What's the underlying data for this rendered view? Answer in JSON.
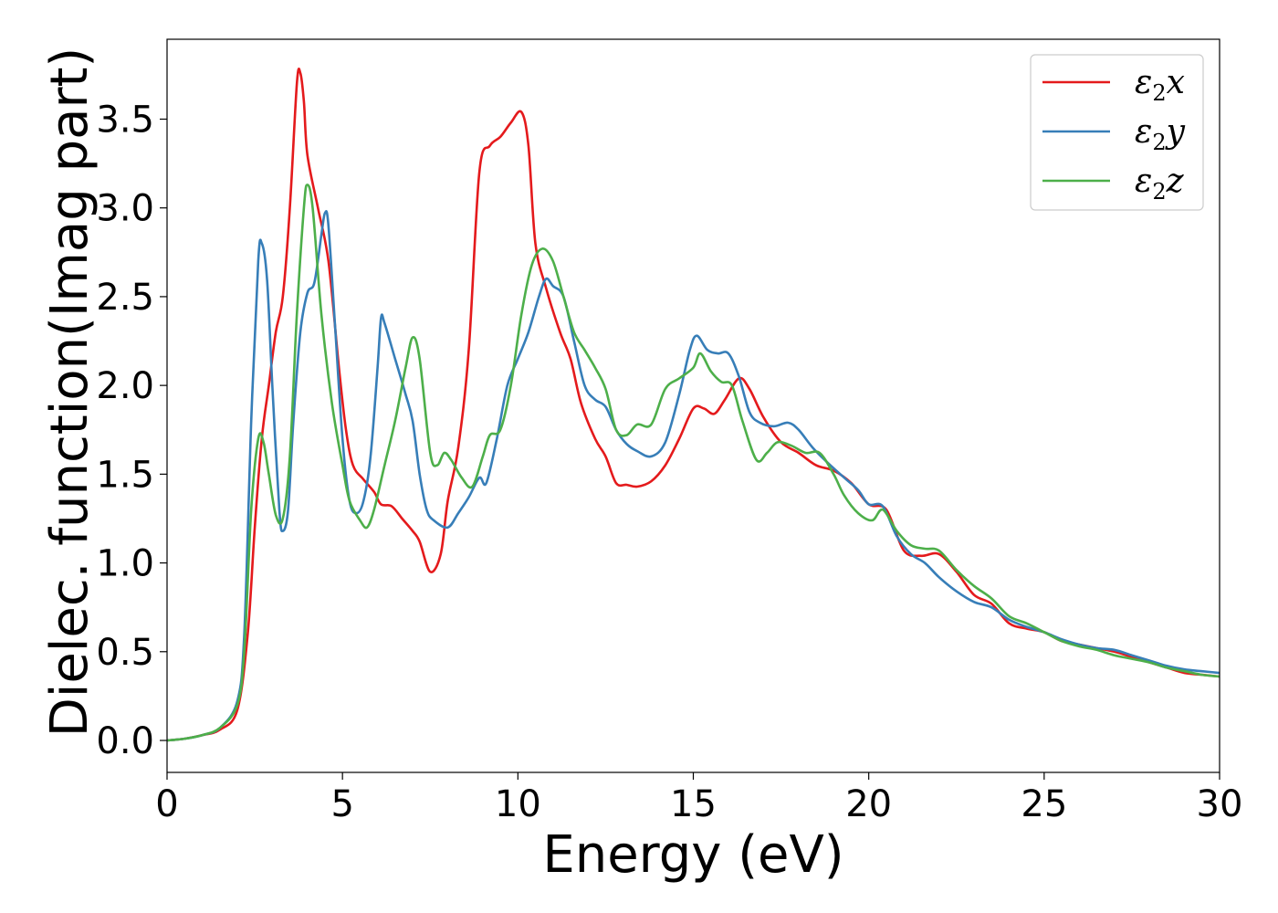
{
  "chart_data": {
    "type": "line",
    "title": "",
    "xlabel": "Energy (eV)",
    "ylabel": "Dielec. function(Imag part)",
    "xlim": [
      0,
      30
    ],
    "ylim": [
      -0.18,
      3.95
    ],
    "xticks": [
      0,
      5,
      10,
      15,
      20,
      25,
      30
    ],
    "yticks": [
      0.0,
      0.5,
      1.0,
      1.5,
      2.0,
      2.5,
      3.0,
      3.5
    ],
    "xtick_labels": [
      "0",
      "5",
      "10",
      "15",
      "20",
      "25",
      "30"
    ],
    "ytick_labels": [
      "0.0",
      "0.5",
      "1.0",
      "1.5",
      "2.0",
      "2.5",
      "3.0",
      "3.5"
    ],
    "grid": false,
    "legend_position": "top-right",
    "series": [
      {
        "name": "x",
        "subscript": "2",
        "color": "#e41a1c",
        "points": [
          [
            0,
            0
          ],
          [
            0.5,
            0.01
          ],
          [
            1,
            0.03
          ],
          [
            1.5,
            0.06
          ],
          [
            2,
            0.17
          ],
          [
            2.3,
            0.6
          ],
          [
            2.5,
            1.2
          ],
          [
            2.7,
            1.7
          ],
          [
            2.9,
            2.0
          ],
          [
            3.1,
            2.3
          ],
          [
            3.3,
            2.5
          ],
          [
            3.5,
            3.0
          ],
          [
            3.7,
            3.7
          ],
          [
            3.8,
            3.76
          ],
          [
            3.9,
            3.6
          ],
          [
            4.0,
            3.3
          ],
          [
            4.3,
            3.0
          ],
          [
            4.6,
            2.7
          ],
          [
            4.9,
            2.1
          ],
          [
            5.1,
            1.75
          ],
          [
            5.3,
            1.55
          ],
          [
            5.6,
            1.47
          ],
          [
            5.9,
            1.4
          ],
          [
            6.1,
            1.33
          ],
          [
            6.4,
            1.32
          ],
          [
            6.7,
            1.25
          ],
          [
            7.0,
            1.18
          ],
          [
            7.2,
            1.12
          ],
          [
            7.5,
            0.95
          ],
          [
            7.8,
            1.05
          ],
          [
            8.0,
            1.35
          ],
          [
            8.3,
            1.65
          ],
          [
            8.6,
            2.2
          ],
          [
            8.9,
            3.2
          ],
          [
            9.2,
            3.35
          ],
          [
            9.5,
            3.4
          ],
          [
            9.8,
            3.48
          ],
          [
            10.1,
            3.54
          ],
          [
            10.3,
            3.35
          ],
          [
            10.5,
            2.8
          ],
          [
            10.8,
            2.55
          ],
          [
            11.2,
            2.3
          ],
          [
            11.5,
            2.15
          ],
          [
            11.8,
            1.9
          ],
          [
            12.2,
            1.7
          ],
          [
            12.5,
            1.6
          ],
          [
            12.8,
            1.45
          ],
          [
            13.1,
            1.44
          ],
          [
            13.4,
            1.43
          ],
          [
            13.8,
            1.46
          ],
          [
            14.2,
            1.55
          ],
          [
            14.6,
            1.7
          ],
          [
            15.0,
            1.87
          ],
          [
            15.3,
            1.87
          ],
          [
            15.6,
            1.84
          ],
          [
            15.9,
            1.92
          ],
          [
            16.3,
            2.04
          ],
          [
            16.6,
            1.98
          ],
          [
            17.0,
            1.82
          ],
          [
            17.5,
            1.68
          ],
          [
            18.0,
            1.62
          ],
          [
            18.5,
            1.55
          ],
          [
            19.0,
            1.52
          ],
          [
            19.5,
            1.45
          ],
          [
            20.0,
            1.33
          ],
          [
            20.5,
            1.3
          ],
          [
            21.0,
            1.07
          ],
          [
            21.5,
            1.04
          ],
          [
            22.0,
            1.05
          ],
          [
            22.5,
            0.95
          ],
          [
            23.0,
            0.82
          ],
          [
            23.5,
            0.77
          ],
          [
            24.0,
            0.66
          ],
          [
            24.5,
            0.63
          ],
          [
            25.0,
            0.61
          ],
          [
            25.5,
            0.56
          ],
          [
            26.0,
            0.54
          ],
          [
            26.5,
            0.52
          ],
          [
            27.0,
            0.5
          ],
          [
            27.5,
            0.47
          ],
          [
            28.0,
            0.44
          ],
          [
            28.5,
            0.41
          ],
          [
            29.0,
            0.38
          ],
          [
            29.5,
            0.37
          ],
          [
            30.0,
            0.36
          ]
        ]
      },
      {
        "name": "y",
        "subscript": "2",
        "color": "#377eb8",
        "points": [
          [
            0,
            0
          ],
          [
            0.5,
            0.01
          ],
          [
            1,
            0.03
          ],
          [
            1.5,
            0.07
          ],
          [
            2,
            0.22
          ],
          [
            2.2,
            0.6
          ],
          [
            2.4,
            1.8
          ],
          [
            2.6,
            2.7
          ],
          [
            2.7,
            2.8
          ],
          [
            2.85,
            2.6
          ],
          [
            3.0,
            2.0
          ],
          [
            3.2,
            1.3
          ],
          [
            3.3,
            1.18
          ],
          [
            3.45,
            1.3
          ],
          [
            3.6,
            1.8
          ],
          [
            3.8,
            2.3
          ],
          [
            4.0,
            2.52
          ],
          [
            4.2,
            2.58
          ],
          [
            4.4,
            2.85
          ],
          [
            4.5,
            2.97
          ],
          [
            4.6,
            2.9
          ],
          [
            4.8,
            2.3
          ],
          [
            5.0,
            1.7
          ],
          [
            5.2,
            1.35
          ],
          [
            5.4,
            1.28
          ],
          [
            5.6,
            1.35
          ],
          [
            5.8,
            1.6
          ],
          [
            6.0,
            2.1
          ],
          [
            6.1,
            2.38
          ],
          [
            6.2,
            2.35
          ],
          [
            6.5,
            2.15
          ],
          [
            6.8,
            1.95
          ],
          [
            7.0,
            1.8
          ],
          [
            7.2,
            1.5
          ],
          [
            7.4,
            1.3
          ],
          [
            7.6,
            1.24
          ],
          [
            8.0,
            1.2
          ],
          [
            8.3,
            1.28
          ],
          [
            8.6,
            1.37
          ],
          [
            8.9,
            1.48
          ],
          [
            9.1,
            1.45
          ],
          [
            9.4,
            1.7
          ],
          [
            9.7,
            2.0
          ],
          [
            10.0,
            2.15
          ],
          [
            10.3,
            2.3
          ],
          [
            10.6,
            2.5
          ],
          [
            10.8,
            2.6
          ],
          [
            11.0,
            2.56
          ],
          [
            11.3,
            2.5
          ],
          [
            11.6,
            2.25
          ],
          [
            11.9,
            2.0
          ],
          [
            12.2,
            1.92
          ],
          [
            12.5,
            1.88
          ],
          [
            12.8,
            1.75
          ],
          [
            13.1,
            1.67
          ],
          [
            13.4,
            1.63
          ],
          [
            13.8,
            1.6
          ],
          [
            14.2,
            1.68
          ],
          [
            14.6,
            1.95
          ],
          [
            14.9,
            2.2
          ],
          [
            15.1,
            2.28
          ],
          [
            15.4,
            2.2
          ],
          [
            15.7,
            2.18
          ],
          [
            16.0,
            2.18
          ],
          [
            16.3,
            2.05
          ],
          [
            16.6,
            1.85
          ],
          [
            16.9,
            1.79
          ],
          [
            17.3,
            1.77
          ],
          [
            17.7,
            1.79
          ],
          [
            18.0,
            1.75
          ],
          [
            18.4,
            1.65
          ],
          [
            18.8,
            1.57
          ],
          [
            19.3,
            1.48
          ],
          [
            19.7,
            1.41
          ],
          [
            20.0,
            1.33
          ],
          [
            20.4,
            1.32
          ],
          [
            20.8,
            1.15
          ],
          [
            21.2,
            1.05
          ],
          [
            21.6,
            1.0
          ],
          [
            22.0,
            0.92
          ],
          [
            22.5,
            0.84
          ],
          [
            23.0,
            0.78
          ],
          [
            23.5,
            0.75
          ],
          [
            24.0,
            0.68
          ],
          [
            24.5,
            0.64
          ],
          [
            25.0,
            0.61
          ],
          [
            25.5,
            0.57
          ],
          [
            26.0,
            0.54
          ],
          [
            26.5,
            0.52
          ],
          [
            27.0,
            0.51
          ],
          [
            27.5,
            0.48
          ],
          [
            28.0,
            0.45
          ],
          [
            28.5,
            0.42
          ],
          [
            29.0,
            0.4
          ],
          [
            29.5,
            0.39
          ],
          [
            30.0,
            0.38
          ]
        ]
      },
      {
        "name": "z",
        "subscript": "2",
        "color": "#4daf4a",
        "points": [
          [
            0,
            0
          ],
          [
            0.5,
            0.01
          ],
          [
            1,
            0.03
          ],
          [
            1.5,
            0.07
          ],
          [
            2,
            0.2
          ],
          [
            2.2,
            0.5
          ],
          [
            2.4,
            1.3
          ],
          [
            2.6,
            1.7
          ],
          [
            2.75,
            1.68
          ],
          [
            2.9,
            1.5
          ],
          [
            3.1,
            1.27
          ],
          [
            3.3,
            1.25
          ],
          [
            3.5,
            1.6
          ],
          [
            3.7,
            2.4
          ],
          [
            3.9,
            3.0
          ],
          [
            4.0,
            3.13
          ],
          [
            4.15,
            3.0
          ],
          [
            4.4,
            2.4
          ],
          [
            4.7,
            1.9
          ],
          [
            5.0,
            1.55
          ],
          [
            5.2,
            1.35
          ],
          [
            5.5,
            1.24
          ],
          [
            5.7,
            1.2
          ],
          [
            5.9,
            1.3
          ],
          [
            6.2,
            1.55
          ],
          [
            6.5,
            1.8
          ],
          [
            6.8,
            2.1
          ],
          [
            7.0,
            2.27
          ],
          [
            7.2,
            2.15
          ],
          [
            7.5,
            1.62
          ],
          [
            7.7,
            1.55
          ],
          [
            7.9,
            1.62
          ],
          [
            8.1,
            1.58
          ],
          [
            8.4,
            1.48
          ],
          [
            8.7,
            1.43
          ],
          [
            9.0,
            1.6
          ],
          [
            9.2,
            1.72
          ],
          [
            9.5,
            1.75
          ],
          [
            9.8,
            2.0
          ],
          [
            10.1,
            2.4
          ],
          [
            10.4,
            2.68
          ],
          [
            10.7,
            2.77
          ],
          [
            11.0,
            2.7
          ],
          [
            11.3,
            2.5
          ],
          [
            11.6,
            2.3
          ],
          [
            11.9,
            2.2
          ],
          [
            12.2,
            2.1
          ],
          [
            12.5,
            1.98
          ],
          [
            12.8,
            1.75
          ],
          [
            13.1,
            1.72
          ],
          [
            13.4,
            1.78
          ],
          [
            13.8,
            1.78
          ],
          [
            14.2,
            1.98
          ],
          [
            14.6,
            2.04
          ],
          [
            15.0,
            2.1
          ],
          [
            15.2,
            2.18
          ],
          [
            15.5,
            2.08
          ],
          [
            15.8,
            2.02
          ],
          [
            16.1,
            2.0
          ],
          [
            16.4,
            1.8
          ],
          [
            16.8,
            1.58
          ],
          [
            17.1,
            1.62
          ],
          [
            17.4,
            1.68
          ],
          [
            17.8,
            1.66
          ],
          [
            18.2,
            1.62
          ],
          [
            18.6,
            1.62
          ],
          [
            19.0,
            1.5
          ],
          [
            19.3,
            1.38
          ],
          [
            19.7,
            1.28
          ],
          [
            20.1,
            1.24
          ],
          [
            20.4,
            1.3
          ],
          [
            20.8,
            1.18
          ],
          [
            21.2,
            1.1
          ],
          [
            21.6,
            1.08
          ],
          [
            22.0,
            1.07
          ],
          [
            22.5,
            0.96
          ],
          [
            23.0,
            0.87
          ],
          [
            23.5,
            0.8
          ],
          [
            24.0,
            0.7
          ],
          [
            24.5,
            0.66
          ],
          [
            25.0,
            0.61
          ],
          [
            25.5,
            0.56
          ],
          [
            26.0,
            0.53
          ],
          [
            26.5,
            0.51
          ],
          [
            27.0,
            0.48
          ],
          [
            27.5,
            0.46
          ],
          [
            28.0,
            0.44
          ],
          [
            28.5,
            0.41
          ],
          [
            29.0,
            0.39
          ],
          [
            29.5,
            0.37
          ],
          [
            30.0,
            0.36
          ]
        ]
      }
    ]
  }
}
